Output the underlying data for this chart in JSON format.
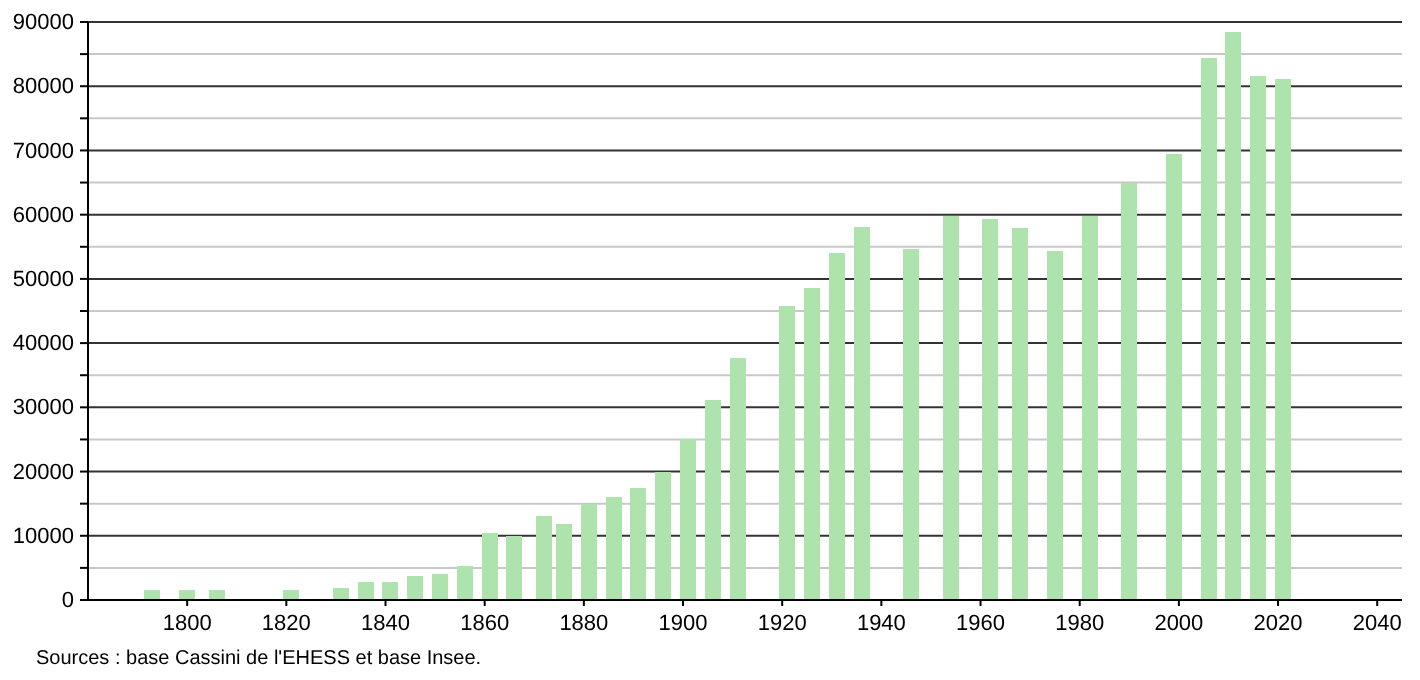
{
  "chart_data": {
    "type": "bar",
    "x": [
      1793,
      1800,
      1806,
      1821,
      1831,
      1836,
      1841,
      1846,
      1851,
      1856,
      1861,
      1866,
      1872,
      1876,
      1881,
      1886,
      1891,
      1896,
      1901,
      1906,
      1911,
      1921,
      1926,
      1931,
      1936,
      1946,
      1954,
      1962,
      1968,
      1975,
      1982,
      1990,
      1999,
      2006,
      2011,
      2016,
      2021
    ],
    "values": [
      1600,
      1600,
      1600,
      1500,
      1900,
      2800,
      2800,
      3800,
      4100,
      5300,
      10500,
      10000,
      13100,
      11800,
      15000,
      16000,
      17500,
      20000,
      25000,
      31200,
      37700,
      45800,
      48600,
      54000,
      58100,
      54700,
      59800,
      59300,
      57900,
      54300,
      59800,
      65000,
      69500,
      84400,
      88400,
      81600,
      81200
    ],
    "color": "#aee3ae",
    "xlim": [
      1780,
      2045
    ],
    "xticks": [
      1800,
      1820,
      1840,
      1860,
      1880,
      1900,
      1920,
      1940,
      1960,
      1980,
      2000,
      2020,
      2040
    ],
    "ylim": [
      0,
      90000
    ],
    "yticks": [
      0,
      {
        "value": 5000,
        "label": null
      },
      10000,
      {
        "value": 15000,
        "label": null
      },
      20000,
      {
        "value": 25000,
        "label": null
      },
      30000,
      {
        "value": 35000,
        "label": null
      },
      40000,
      {
        "value": 45000,
        "label": null
      },
      50000,
      {
        "value": 55000,
        "label": null
      },
      60000,
      {
        "value": 65000,
        "label": null
      },
      70000,
      {
        "value": 75000,
        "label": null
      },
      80000,
      {
        "value": 85000,
        "label": null
      },
      90000
    ],
    "grid": "y",
    "annotations": [
      "Sources : base Cassini de l'EHESS et base Insee."
    ]
  }
}
